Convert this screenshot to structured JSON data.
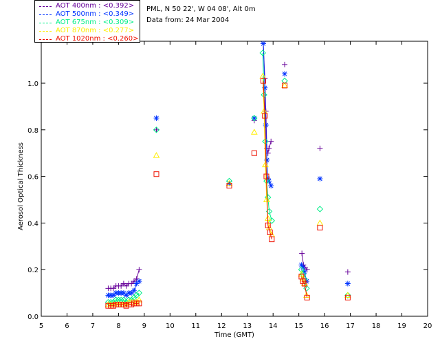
{
  "legend": [
    {
      "label": "AOT  400nm : <0.392>",
      "color": "#660099"
    },
    {
      "label": "AOT  500nm : <0.349>",
      "color": "#0033ff"
    },
    {
      "label": "AOT  675nm : <0.309>",
      "color": "#00ee88"
    },
    {
      "label": "AOT  870nm : <0.277>",
      "color": "#ffee00"
    },
    {
      "label": "AOT 1020nm : <0.260>",
      "color": "#ee1100"
    }
  ],
  "info": {
    "site": "PML, N 50 22', W 04 08', Alt 0m",
    "date": "Data from: 24 Mar 2004"
  },
  "chart_data": {
    "type": "scatter",
    "xlabel": "Time (GMT)",
    "ylabel": "Aerosol Optical Thickness",
    "xlim": [
      5,
      20
    ],
    "ylim": [
      0,
      1.18
    ],
    "xticks": [
      5,
      6,
      7,
      8,
      9,
      10,
      11,
      12,
      13,
      14,
      15,
      16,
      17,
      18,
      19,
      20
    ],
    "yticks": [
      "0.0",
      "0.2",
      "0.4",
      "0.6",
      "0.8",
      "1.0"
    ],
    "grid": false,
    "series": [
      {
        "name": "AOT  400nm",
        "marker": "plus",
        "color": "#660099",
        "x": [
          7.6,
          7.7,
          7.8,
          7.9,
          8.0,
          8.1,
          8.2,
          8.3,
          8.4,
          8.5,
          8.6,
          8.7,
          8.8,
          9.47,
          12.3,
          13.27,
          13.62,
          13.68,
          13.72,
          13.76,
          13.8,
          13.84,
          13.92,
          14.45,
          15.12,
          15.18,
          15.24,
          15.32,
          15.82,
          16.9
        ],
        "y": [
          0.12,
          0.12,
          0.12,
          0.13,
          0.13,
          0.13,
          0.14,
          0.13,
          0.14,
          0.14,
          0.15,
          0.16,
          0.2,
          0.8,
          0.57,
          0.84,
          1.17,
          1.02,
          0.88,
          0.72,
          0.7,
          0.72,
          0.75,
          1.08,
          0.27,
          0.22,
          0.21,
          0.2,
          0.72,
          0.19
        ]
      },
      {
        "name": "AOT  500nm",
        "marker": "star",
        "color": "#0033ff",
        "x": [
          7.6,
          7.7,
          7.8,
          7.9,
          8.0,
          8.1,
          8.2,
          8.3,
          8.4,
          8.5,
          8.6,
          8.7,
          8.8,
          9.47,
          12.3,
          13.27,
          13.62,
          13.68,
          13.72,
          13.76,
          13.8,
          13.84,
          13.92,
          14.45,
          15.1,
          15.16,
          15.22,
          15.3,
          15.82,
          16.9
        ],
        "y": [
          0.09,
          0.09,
          0.09,
          0.1,
          0.1,
          0.1,
          0.1,
          0.09,
          0.1,
          0.1,
          0.11,
          0.14,
          0.15,
          0.85,
          0.57,
          0.85,
          1.17,
          0.98,
          0.82,
          0.67,
          0.59,
          0.58,
          0.56,
          1.04,
          0.22,
          0.21,
          0.19,
          0.15,
          0.59,
          0.14
        ]
      },
      {
        "name": "AOT  675nm",
        "marker": "diamond",
        "color": "#00ee88",
        "x": [
          7.6,
          7.7,
          7.8,
          7.9,
          8.0,
          8.1,
          8.2,
          8.3,
          8.4,
          8.5,
          8.6,
          8.7,
          8.8,
          9.47,
          12.3,
          13.27,
          13.6,
          13.65,
          13.7,
          13.75,
          13.8,
          13.85,
          13.95,
          14.45,
          15.1,
          15.16,
          15.22,
          15.3,
          15.82,
          16.9
        ],
        "y": [
          0.06,
          0.06,
          0.06,
          0.07,
          0.07,
          0.07,
          0.07,
          0.06,
          0.07,
          0.07,
          0.08,
          0.09,
          0.1,
          0.8,
          0.58,
          0.85,
          1.13,
          0.95,
          0.75,
          0.58,
          0.51,
          0.45,
          0.41,
          1.01,
          0.2,
          0.18,
          0.16,
          0.12,
          0.46,
          0.09
        ]
      },
      {
        "name": "AOT  870nm",
        "marker": "triangle",
        "color": "#ffee00",
        "x": [
          7.6,
          7.7,
          7.8,
          7.9,
          8.0,
          8.1,
          8.2,
          8.3,
          8.4,
          8.5,
          8.6,
          8.7,
          8.8,
          9.47,
          12.3,
          13.27,
          13.6,
          13.65,
          13.7,
          13.75,
          13.8,
          13.85,
          13.95,
          14.45,
          15.1,
          15.16,
          15.22,
          15.3,
          15.82,
          16.9
        ],
        "y": [
          0.05,
          0.05,
          0.05,
          0.05,
          0.05,
          0.05,
          0.05,
          0.05,
          0.06,
          0.06,
          0.06,
          0.06,
          0.07,
          0.69,
          0.57,
          0.79,
          1.03,
          0.88,
          0.65,
          0.5,
          0.42,
          0.38,
          0.35,
          0.99,
          0.18,
          0.16,
          0.14,
          0.09,
          0.4,
          0.09
        ]
      },
      {
        "name": "AOT 1020nm",
        "marker": "square",
        "color": "#ee1100",
        "x": [
          7.6,
          7.7,
          7.8,
          7.9,
          8.0,
          8.1,
          8.2,
          8.3,
          8.4,
          8.5,
          8.6,
          8.7,
          8.8,
          9.47,
          12.3,
          13.27,
          13.62,
          13.68,
          13.74,
          13.8,
          13.88,
          13.95,
          14.45,
          15.1,
          15.16,
          15.22,
          15.32,
          15.82,
          16.9
        ],
        "y": [
          0.045,
          0.045,
          0.045,
          0.05,
          0.05,
          0.05,
          0.05,
          0.045,
          0.05,
          0.05,
          0.055,
          0.055,
          0.055,
          0.61,
          0.56,
          0.7,
          1.01,
          0.86,
          0.6,
          0.39,
          0.36,
          0.33,
          0.99,
          0.17,
          0.15,
          0.14,
          0.08,
          0.38,
          0.08
        ]
      }
    ]
  }
}
